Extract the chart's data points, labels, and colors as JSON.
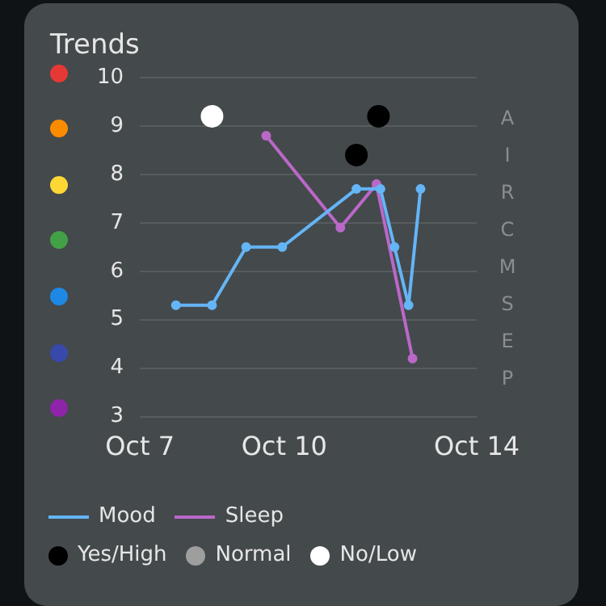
{
  "chart_data": {
    "type": "line",
    "title": "Trends",
    "xlim": [
      "--10-07",
      "--10-14"
    ],
    "xticks": [
      {
        "value": "--10-07",
        "label": "Oct 7"
      },
      {
        "value": "--10-10",
        "label": "Oct 10"
      },
      {
        "value": "--10-14",
        "label": "Oct 14"
      }
    ],
    "ylim": [
      3,
      10
    ],
    "yticks": [
      3,
      4,
      5,
      6,
      7,
      8,
      9,
      10
    ],
    "grid": "y",
    "legend": "bottom",
    "marker": "circle",
    "annotations": [
      "A",
      "I",
      "R",
      "C",
      "M",
      "S",
      "E",
      "P"
    ],
    "series": [
      {
        "name": "Mood",
        "color": "#64b5f6",
        "x": [
          "--10-07T18:00",
          "--10-08T12:00",
          "--10-09T05:00",
          "--10-09T23:00",
          "--10-11T12:00",
          "--10-12T00:00",
          "--10-12T07:00",
          "--10-12T14:00",
          "--10-12T20:00"
        ],
        "values": [
          5.3,
          5.3,
          6.5,
          6.5,
          7.7,
          7.7,
          6.5,
          5.3,
          7.7
        ]
      },
      {
        "name": "Sleep",
        "color": "#ba68c8",
        "x": [
          "--10-09T15:00",
          "--10-11T04:00",
          "--10-11T22:00",
          "--10-12T16:00"
        ],
        "values": [
          8.8,
          6.9,
          7.8,
          4.2
        ]
      },
      {
        "name": "Yes/High",
        "type": "scatter",
        "color": "#000000",
        "x": [
          "--10-11T12:00",
          "--10-11T23:00"
        ],
        "values": [
          8.4,
          9.2
        ]
      },
      {
        "name": "Normal",
        "type": "scatter",
        "color": "#9e9e9e"
      },
      {
        "name": "No/Low",
        "type": "scatter",
        "color": "#ffffff",
        "x": [
          "--10-08T12:00"
        ],
        "values": [
          9.2
        ]
      }
    ]
  }
}
